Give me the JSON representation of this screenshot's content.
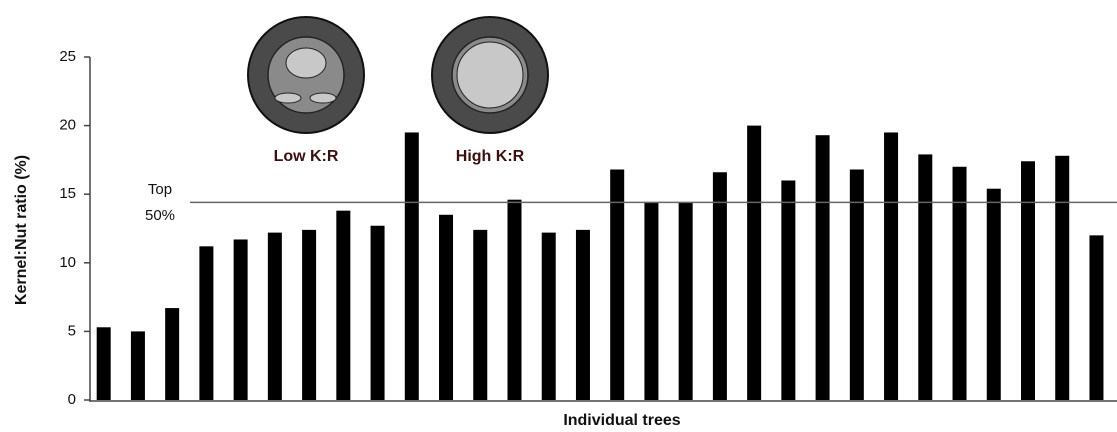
{
  "chart_data": {
    "type": "bar",
    "y_label": "Kernel:Nut ratio (%)",
    "x_label": "Individual trees",
    "categories": [
      null,
      null,
      null,
      null,
      null,
      null,
      null,
      null,
      null,
      null,
      null,
      null,
      null,
      null,
      null,
      null,
      null,
      null,
      null,
      null,
      null,
      null,
      null,
      null,
      null,
      null,
      null,
      null,
      null,
      null
    ],
    "values": [
      5.3,
      5.0,
      6.7,
      11.2,
      11.7,
      12.2,
      12.4,
      13.8,
      12.7,
      19.5,
      13.5,
      12.4,
      14.6,
      12.2,
      12.4,
      16.8,
      14.4,
      14.4,
      16.6,
      20.0,
      16.0,
      19.3,
      16.8,
      19.5,
      17.9,
      17.0,
      15.4,
      17.4,
      17.8,
      12.0
    ],
    "color": "#000000",
    "ylim": [
      0,
      25
    ],
    "yticks": [
      0,
      5,
      10,
      15,
      20,
      25
    ],
    "reference_line": 14.4,
    "reference_label": [
      "Top",
      "50%"
    ],
    "illustration_labels": [
      "Low K:R",
      "High K:R"
    ]
  }
}
